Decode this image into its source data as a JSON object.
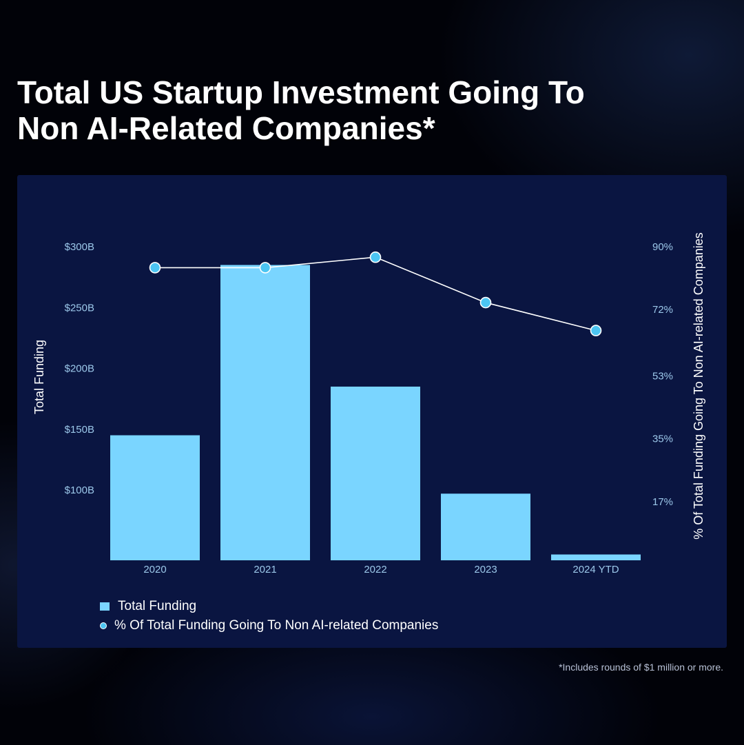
{
  "title_lines": [
    "Total US Startup Investment Going To",
    "Non AI-Related Companies*"
  ],
  "footnote": "*Includes rounds of $1 million or more.",
  "colors": {
    "bar": "#7ad5ff",
    "line": "#ffffff",
    "marker": "#4cc5f2",
    "panel": "#0a1541",
    "tick_text": "#9cc8ea"
  },
  "chart_data": {
    "type": "bar",
    "categories": [
      "2020",
      "2021",
      "2022",
      "2023",
      "2024 YTD"
    ],
    "series": [
      {
        "name": "Total Funding",
        "type": "bar",
        "axis": "left",
        "values": [
          145,
          285,
          185,
          97,
          47
        ]
      },
      {
        "name": "% Of Total Funding Going To Non AI-related Companies",
        "type": "line",
        "axis": "right",
        "values": [
          84,
          84,
          87,
          74,
          66
        ]
      }
    ],
    "ylabel": "Total Funding",
    "y2label": "% Of Total Funding Going To Non AI-related Companies",
    "ylim": [
      50,
      300
    ],
    "y2lim": [
      0,
      90
    ],
    "yticks": [
      100,
      150,
      200,
      250,
      300
    ],
    "yticklabels": [
      "$100B",
      "$150B",
      "$200B",
      "$250B",
      "$300B"
    ],
    "y2ticks": [
      17,
      35,
      53,
      72,
      90
    ],
    "y2ticklabels": [
      "17%",
      "35%",
      "53%",
      "72%",
      "90%"
    ],
    "grid": false,
    "legend_position": "bottom-left"
  }
}
